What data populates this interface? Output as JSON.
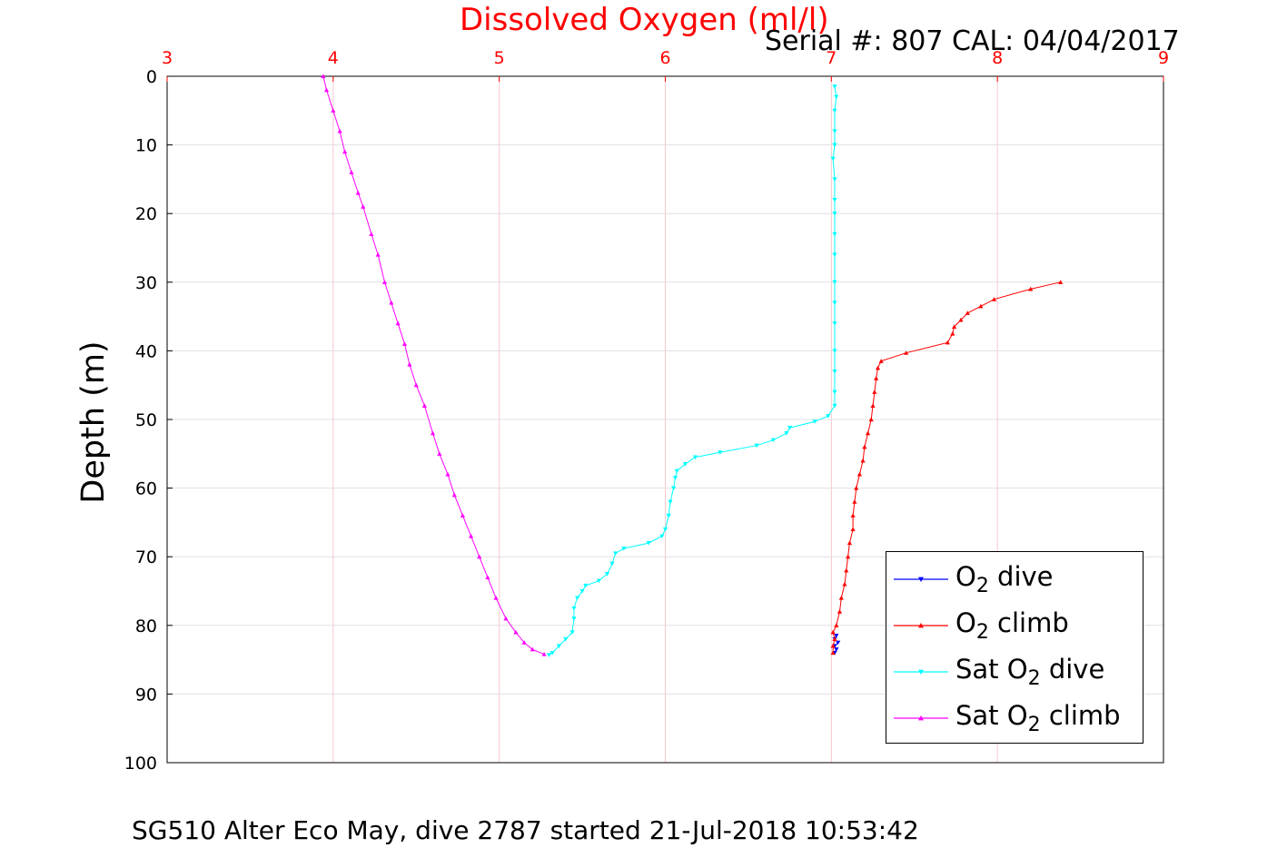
{
  "chart_data": {
    "type": "line",
    "title": "Dissolved Oxygen (ml/l)",
    "subtitle": "Serial #: 807  CAL: 04/04/2017",
    "ylabel": "Depth (m)",
    "caption": "SG510 Alter Eco May, dive 2787 started 21-Jul-2018 10:53:42",
    "xlim": [
      3,
      9
    ],
    "ylim": [
      0,
      100
    ],
    "y_reversed": true,
    "x_axis_position": "top",
    "x_ticks": [
      "3",
      "4",
      "5",
      "6",
      "7",
      "8",
      "9"
    ],
    "y_ticks": [
      "0",
      "10",
      "20",
      "30",
      "40",
      "50",
      "60",
      "70",
      "80",
      "90",
      "100"
    ],
    "grid": true,
    "legend_position": "bottom-right",
    "series": [
      {
        "name": "O₂ dive",
        "legend_parts": [
          "O",
          "2",
          " dive"
        ],
        "color": "#0000ff",
        "marker": "triangle-down",
        "points": [
          [
            7.03,
            81.5
          ],
          [
            7.02,
            82.0
          ],
          [
            7.04,
            82.5
          ],
          [
            7.02,
            83.0
          ],
          [
            7.03,
            83.5
          ],
          [
            7.02,
            84.0
          ]
        ]
      },
      {
        "name": "O₂ climb",
        "legend_parts": [
          "O",
          "2",
          " climb"
        ],
        "color": "#ff0000",
        "marker": "triangle-up",
        "points": [
          [
            7.01,
            84.0
          ],
          [
            7.01,
            83.0
          ],
          [
            7.02,
            82.0
          ],
          [
            7.01,
            81.0
          ],
          [
            7.03,
            80.0
          ],
          [
            7.05,
            78.0
          ],
          [
            7.06,
            76.0
          ],
          [
            7.08,
            74.0
          ],
          [
            7.09,
            72.0
          ],
          [
            7.1,
            70.0
          ],
          [
            7.11,
            68.0
          ],
          [
            7.13,
            66.0
          ],
          [
            7.13,
            64.0
          ],
          [
            7.14,
            62.0
          ],
          [
            7.15,
            60.0
          ],
          [
            7.17,
            58.0
          ],
          [
            7.19,
            56.0
          ],
          [
            7.2,
            54.0
          ],
          [
            7.22,
            52.0
          ],
          [
            7.24,
            50.0
          ],
          [
            7.25,
            48.0
          ],
          [
            7.26,
            46.0
          ],
          [
            7.27,
            44.0
          ],
          [
            7.28,
            42.5
          ],
          [
            7.3,
            41.5
          ],
          [
            7.45,
            40.3
          ],
          [
            7.7,
            38.8
          ],
          [
            7.73,
            37.5
          ],
          [
            7.74,
            36.5
          ],
          [
            7.78,
            35.5
          ],
          [
            7.82,
            34.5
          ],
          [
            7.9,
            33.5
          ],
          [
            7.98,
            32.5
          ],
          [
            8.2,
            31.0
          ],
          [
            8.38,
            30.0
          ]
        ]
      },
      {
        "name": "Sat O₂ dive",
        "legend_parts": [
          "Sat O",
          "2",
          " dive"
        ],
        "color": "#00ffff",
        "marker": "triangle-down",
        "points": [
          [
            7.02,
            1.5
          ],
          [
            7.03,
            3.0
          ],
          [
            7.02,
            5.0
          ],
          [
            7.02,
            8.0
          ],
          [
            7.02,
            10.0
          ],
          [
            7.01,
            12.0
          ],
          [
            7.02,
            15.0
          ],
          [
            7.02,
            18.0
          ],
          [
            7.02,
            20.0
          ],
          [
            7.02,
            23.0
          ],
          [
            7.02,
            26.0
          ],
          [
            7.02,
            30.0
          ],
          [
            7.02,
            33.0
          ],
          [
            7.02,
            36.0
          ],
          [
            7.02,
            40.0
          ],
          [
            7.02,
            43.0
          ],
          [
            7.02,
            46.0
          ],
          [
            7.02,
            48.0
          ],
          [
            6.98,
            49.5
          ],
          [
            6.9,
            50.3
          ],
          [
            6.75,
            51.2
          ],
          [
            6.73,
            52.0
          ],
          [
            6.65,
            53.0
          ],
          [
            6.55,
            53.8
          ],
          [
            6.33,
            54.8
          ],
          [
            6.18,
            55.5
          ],
          [
            6.12,
            56.5
          ],
          [
            6.07,
            57.5
          ],
          [
            6.06,
            58.5
          ],
          [
            6.05,
            60.0
          ],
          [
            6.03,
            62.0
          ],
          [
            6.02,
            64.0
          ],
          [
            6.0,
            66.0
          ],
          [
            5.98,
            67.0
          ],
          [
            5.9,
            68.0
          ],
          [
            5.75,
            68.8
          ],
          [
            5.7,
            69.5
          ],
          [
            5.68,
            71.0
          ],
          [
            5.65,
            72.5
          ],
          [
            5.6,
            73.5
          ],
          [
            5.52,
            74.2
          ],
          [
            5.5,
            75.0
          ],
          [
            5.47,
            76.0
          ],
          [
            5.45,
            77.5
          ],
          [
            5.45,
            79.0
          ],
          [
            5.44,
            81.0
          ],
          [
            5.4,
            82.0
          ],
          [
            5.36,
            83.0
          ],
          [
            5.32,
            84.0
          ],
          [
            5.3,
            84.3
          ]
        ]
      },
      {
        "name": "Sat O₂ climb",
        "legend_parts": [
          "Sat O",
          "2",
          " climb"
        ],
        "color": "#ff00ff",
        "marker": "triangle-up",
        "points": [
          [
            5.27,
            84.2
          ],
          [
            5.2,
            83.5
          ],
          [
            5.15,
            82.5
          ],
          [
            5.1,
            81.0
          ],
          [
            5.04,
            79.0
          ],
          [
            4.98,
            76.0
          ],
          [
            4.93,
            73.0
          ],
          [
            4.88,
            70.0
          ],
          [
            4.83,
            67.0
          ],
          [
            4.78,
            64.0
          ],
          [
            4.73,
            61.0
          ],
          [
            4.69,
            58.0
          ],
          [
            4.64,
            55.0
          ],
          [
            4.6,
            52.0
          ],
          [
            4.55,
            48.0
          ],
          [
            4.5,
            45.0
          ],
          [
            4.46,
            42.0
          ],
          [
            4.43,
            39.0
          ],
          [
            4.39,
            36.0
          ],
          [
            4.35,
            33.0
          ],
          [
            4.31,
            30.0
          ],
          [
            4.27,
            26.0
          ],
          [
            4.23,
            23.0
          ],
          [
            4.18,
            19.0
          ],
          [
            4.15,
            17.0
          ],
          [
            4.11,
            14.0
          ],
          [
            4.07,
            11.0
          ],
          [
            4.04,
            8.0
          ],
          [
            4.0,
            5.0
          ],
          [
            3.96,
            2.0
          ],
          [
            3.94,
            0.0
          ]
        ]
      }
    ]
  }
}
